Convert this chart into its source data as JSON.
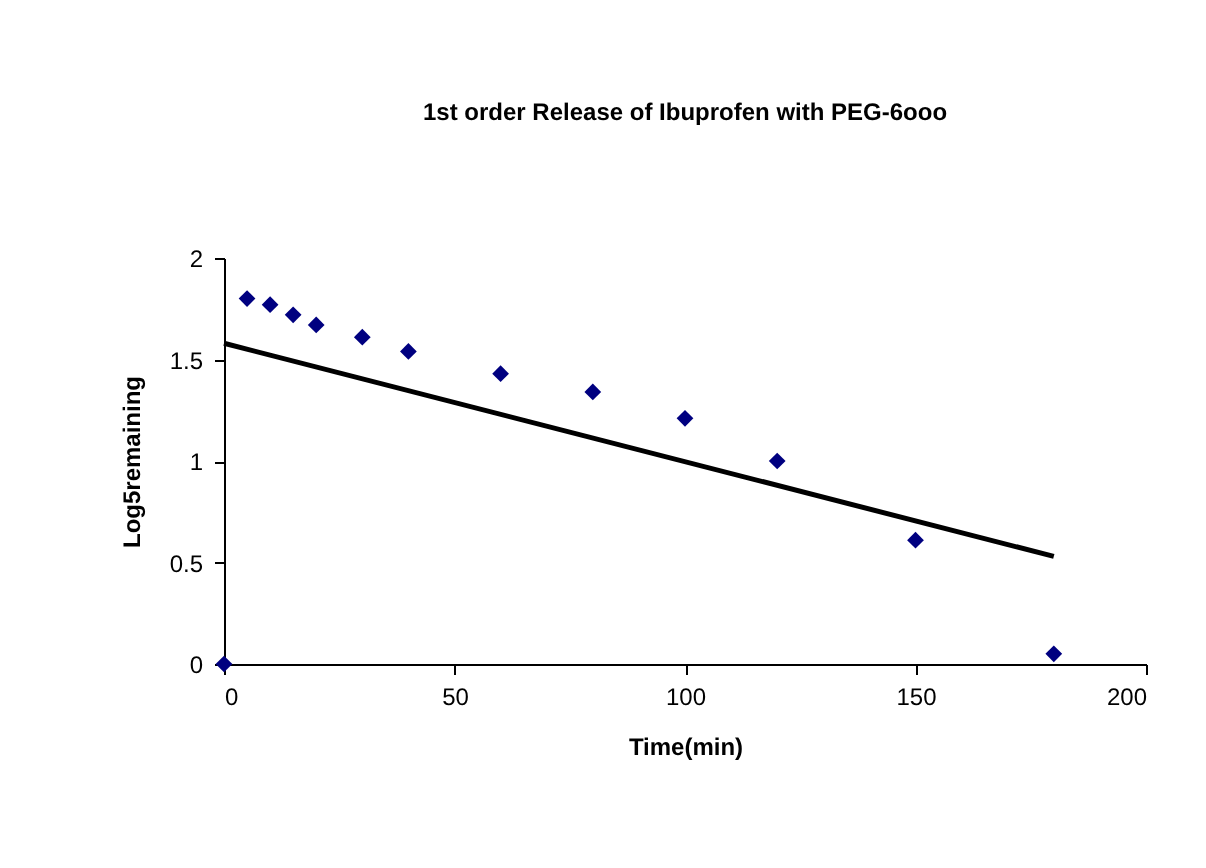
{
  "chart_data": {
    "type": "scatter",
    "title": [
      "1st order Release of Ibuprofen with PEG-6ooo"
    ],
    "xlabel": "Time(min)",
    "ylabel": "Log5remaining",
    "series": [
      {
        "type": "scatter",
        "color": "#000080",
        "x": [
          0,
          5,
          10,
          15,
          20,
          30,
          40,
          60,
          80,
          100,
          120,
          150,
          180
        ],
        "values": [
          0,
          1.8,
          1.77,
          1.72,
          1.67,
          1.61,
          1.54,
          1.43,
          1.34,
          1.21,
          1.0,
          0.61,
          0.05
        ]
      },
      {
        "type": "line",
        "color": "#000000",
        "x": [
          0,
          180
        ],
        "values": [
          1.58,
          0.53
        ],
        "marker": "none"
      }
    ],
    "marker": "diamond",
    "xlim": [
      0,
      200
    ],
    "xticks": [
      0,
      50,
      100,
      150,
      200
    ],
    "ylim": [
      0,
      2
    ],
    "yticks": [
      {
        "value": 0,
        "label": "0"
      },
      0.5,
      {
        "value": 1,
        "label": "1"
      },
      1.5,
      {
        "value": 2,
        "label": "2"
      }
    ],
    "grid": false
  }
}
